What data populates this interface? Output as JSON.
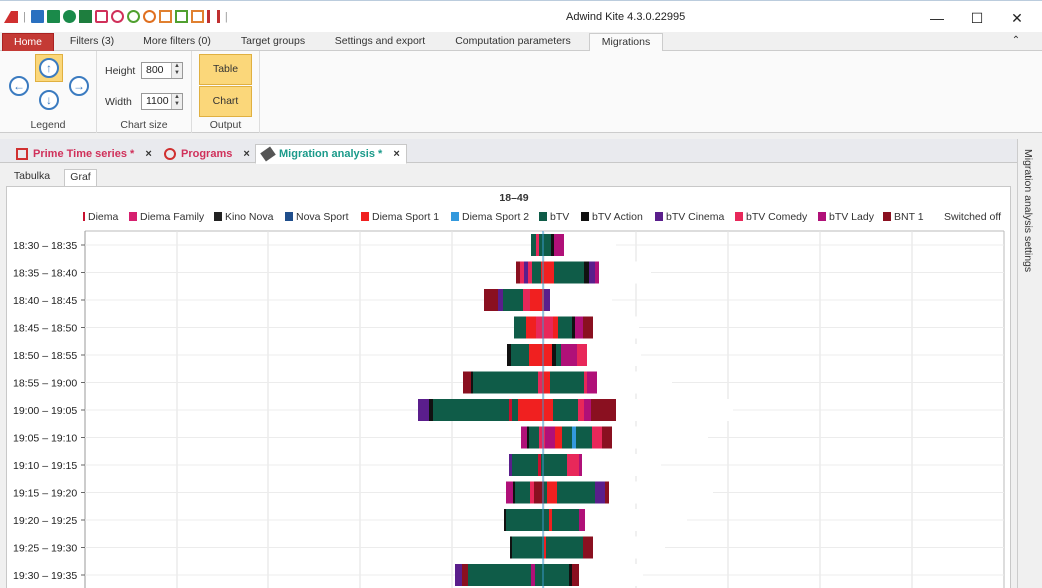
{
  "window": {
    "title": "Adwind Kite 4.3.0.22995",
    "minimize": "—",
    "maximize": "☐",
    "close": "✕"
  },
  "ribbon_tabs": [
    {
      "label": "Home"
    },
    {
      "label": "Filters (3)"
    },
    {
      "label": "More filters (0)"
    },
    {
      "label": "Target groups"
    },
    {
      "label": "Settings and export"
    },
    {
      "label": "Computation parameters"
    },
    {
      "label": "Migrations"
    }
  ],
  "ribbon": {
    "legend_label": "Legend",
    "chart_size_label": "Chart size",
    "output_label": "Output",
    "height_label": "Height",
    "height_value": "800",
    "width_label": "Width",
    "width_value": "1100",
    "table_button": "Table",
    "chart_button": "Chart",
    "collapse_glyph": "⌃"
  },
  "doc_tabs": [
    {
      "label": "Prime Time series *",
      "color": "#d0305a"
    },
    {
      "label": "Programs",
      "color": "#d0305a"
    },
    {
      "label": "Migration analysis *",
      "color": "#1a9a8a"
    }
  ],
  "sub_tabs": [
    {
      "label": "Tabulka"
    },
    {
      "label": "Graf"
    }
  ],
  "side_panel": {
    "label": "Migration analysis settings"
  },
  "chart_data": {
    "type": "bar",
    "title": "18–49",
    "legend_position": "top",
    "grid": true,
    "categories": [
      "18:30 – 18:35",
      "18:35 – 18:40",
      "18:40 – 18:45",
      "18:45 – 18:50",
      "18:50 – 18:55",
      "18:55 – 19:00",
      "19:00 – 19:05",
      "19:05 – 19:10",
      "19:10 – 19:15",
      "19:15 – 19:20",
      "19:20 – 19:25",
      "19:25 – 19:30",
      "19:30 – 19:35"
    ],
    "series": [
      {
        "name": "Diema",
        "color": "#c8102e"
      },
      {
        "name": "Diema Family",
        "color": "#d6206f"
      },
      {
        "name": "Kino Nova",
        "color": "#222222"
      },
      {
        "name": "Nova Sport",
        "color": "#1f4e8c"
      },
      {
        "name": "Diema Sport 1",
        "color": "#f02020"
      },
      {
        "name": "Diema Sport 2",
        "color": "#3399dd"
      },
      {
        "name": "bTV",
        "color": "#0f5c48"
      },
      {
        "name": "bTV Action",
        "color": "#111111"
      },
      {
        "name": "bTV Cinema",
        "color": "#5a1e8c"
      },
      {
        "name": "bTV Comedy",
        "color": "#e8285a"
      },
      {
        "name": "bTV Lady",
        "color": "#b01078"
      },
      {
        "name": "BNT 1",
        "color": "#8a1020"
      },
      {
        "name": "Switched off",
        "color": "#ffffff"
      }
    ],
    "rows": [
      [
        {
          "s": 6,
          "w": 5
        },
        {
          "s": 9,
          "w": 3
        },
        {
          "s": 6,
          "w": 12
        },
        {
          "s": 7,
          "w": 3
        },
        {
          "s": 10,
          "w": 10
        },
        {
          "s": 12,
          "w": 52
        }
      ],
      [
        {
          "s": 11,
          "w": 4
        },
        {
          "s": 9,
          "w": 4
        },
        {
          "s": 8,
          "w": 4
        },
        {
          "s": 9,
          "w": 4
        },
        {
          "s": 6,
          "w": 9
        },
        {
          "s": 4,
          "w": 13
        },
        {
          "s": 6,
          "w": 30
        },
        {
          "s": 7,
          "w": 5
        },
        {
          "s": 8,
          "w": 6
        },
        {
          "s": 10,
          "w": 4
        },
        {
          "s": 12,
          "w": 52
        }
      ],
      [
        {
          "s": 11,
          "w": 14
        },
        {
          "s": 8,
          "w": 5
        },
        {
          "s": 6,
          "w": 20
        },
        {
          "s": 9,
          "w": 7
        },
        {
          "s": 4,
          "w": 14
        },
        {
          "s": 8,
          "w": 6
        },
        {
          "s": 12,
          "w": 62
        }
      ],
      [
        {
          "s": 6,
          "w": 12
        },
        {
          "s": 4,
          "w": 10
        },
        {
          "s": 9,
          "w": 17
        },
        {
          "s": 4,
          "w": 5
        },
        {
          "s": 6,
          "w": 14
        },
        {
          "s": 7,
          "w": 3
        },
        {
          "s": 10,
          "w": 8
        },
        {
          "s": 11,
          "w": 10
        },
        {
          "s": 12,
          "w": 46
        }
      ],
      [
        {
          "s": 7,
          "w": 4
        },
        {
          "s": 6,
          "w": 18
        },
        {
          "s": 4,
          "w": 23
        },
        {
          "s": 7,
          "w": 4
        },
        {
          "s": 6,
          "w": 5
        },
        {
          "s": 10,
          "w": 16
        },
        {
          "s": 9,
          "w": 10
        },
        {
          "s": 12,
          "w": 54
        }
      ],
      [
        {
          "s": 11,
          "w": 8
        },
        {
          "s": 7,
          "w": 2
        },
        {
          "s": 6,
          "w": 65
        },
        {
          "s": 9,
          "w": 4
        },
        {
          "s": 4,
          "w": 8
        },
        {
          "s": 6,
          "w": 34
        },
        {
          "s": 9,
          "w": 3
        },
        {
          "s": 10,
          "w": 10
        },
        {
          "s": 12,
          "w": 75
        }
      ],
      [
        {
          "s": 8,
          "w": 11
        },
        {
          "s": 7,
          "w": 4
        },
        {
          "s": 6,
          "w": 76
        },
        {
          "s": 0,
          "w": 3
        },
        {
          "s": 6,
          "w": 6
        },
        {
          "s": 4,
          "w": 35
        },
        {
          "s": 6,
          "w": 25
        },
        {
          "s": 9,
          "w": 6
        },
        {
          "s": 10,
          "w": 7
        },
        {
          "s": 11,
          "w": 25
        },
        {
          "s": 12,
          "w": 117
        }
      ],
      [
        {
          "s": 10,
          "w": 6
        },
        {
          "s": 7,
          "w": 2
        },
        {
          "s": 6,
          "w": 10
        },
        {
          "s": 9,
          "w": 6
        },
        {
          "s": 10,
          "w": 10
        },
        {
          "s": 4,
          "w": 7
        },
        {
          "s": 6,
          "w": 10
        },
        {
          "s": 5,
          "w": 4
        },
        {
          "s": 6,
          "w": 16
        },
        {
          "s": 9,
          "w": 10
        },
        {
          "s": 11,
          "w": 10
        },
        {
          "s": 12,
          "w": 96
        }
      ],
      [
        {
          "s": 8,
          "w": 3
        },
        {
          "s": 6,
          "w": 26
        },
        {
          "s": 0,
          "w": 3
        },
        {
          "s": 6,
          "w": 26
        },
        {
          "s": 9,
          "w": 12
        },
        {
          "s": 10,
          "w": 3
        },
        {
          "s": 12,
          "w": 79
        }
      ],
      [
        {
          "s": 10,
          "w": 7
        },
        {
          "s": 7,
          "w": 2
        },
        {
          "s": 6,
          "w": 15
        },
        {
          "s": 9,
          "w": 4
        },
        {
          "s": 11,
          "w": 10
        },
        {
          "s": 6,
          "w": 3
        },
        {
          "s": 4,
          "w": 10
        },
        {
          "s": 6,
          "w": 38
        },
        {
          "s": 8,
          "w": 10
        },
        {
          "s": 11,
          "w": 4
        },
        {
          "s": 12,
          "w": 104
        }
      ],
      [
        {
          "s": 7,
          "w": 2
        },
        {
          "s": 6,
          "w": 43
        },
        {
          "s": 4,
          "w": 3
        },
        {
          "s": 6,
          "w": 27
        },
        {
          "s": 10,
          "w": 6
        },
        {
          "s": 12,
          "w": 102
        }
      ],
      [
        {
          "s": 7,
          "w": 2
        },
        {
          "s": 6,
          "w": 32
        },
        {
          "s": 4,
          "w": 2
        },
        {
          "s": 6,
          "w": 37
        },
        {
          "s": 11,
          "w": 10
        },
        {
          "s": 12,
          "w": 72
        }
      ],
      [
        {
          "s": 8,
          "w": 7
        },
        {
          "s": 11,
          "w": 6
        },
        {
          "s": 6,
          "w": 63
        },
        {
          "s": 10,
          "w": 4
        },
        {
          "s": 6,
          "w": 6
        },
        {
          "s": 6,
          "w": 28
        },
        {
          "s": 7,
          "w": 3
        },
        {
          "s": 11,
          "w": 7
        },
        {
          "s": 12,
          "w": 64
        }
      ]
    ],
    "row_offsets": [
      530,
      515,
      483,
      513,
      506,
      462,
      417,
      520,
      508,
      505,
      503,
      509,
      454
    ]
  }
}
